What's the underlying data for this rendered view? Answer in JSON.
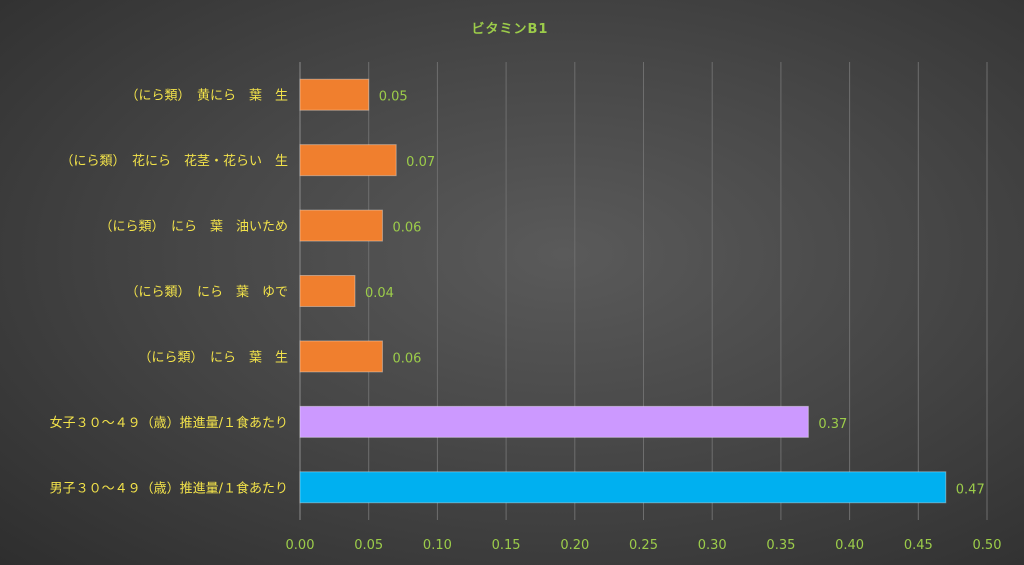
{
  "chart_data": {
    "type": "bar",
    "orientation": "horizontal",
    "title": "ビタミンB1",
    "categories": [
      "（にら類）　黄にら　葉　生",
      "（にら類）　花にら　花茎・花らい　生",
      "（にら類）　にら　葉　油いため",
      "（にら類）　にら　葉　ゆで",
      "（にら類）　にら　葉　生",
      "女子３０～４９（歳）推進量/１食あたり",
      "男子３０～４９（歳）推進量/１食あたり"
    ],
    "values": [
      0.05,
      0.07,
      0.06,
      0.04,
      0.06,
      0.37,
      0.47
    ],
    "value_labels": [
      "0.05",
      "0.07",
      "0.06",
      "0.04",
      "0.06",
      "0.37",
      "0.47"
    ],
    "bar_colors": [
      "#f07f2e",
      "#f07f2e",
      "#f07f2e",
      "#f07f2e",
      "#f07f2e",
      "#cc99ff",
      "#00b0f0"
    ],
    "xlim": [
      0,
      0.5
    ],
    "x_ticks": [
      "0.00",
      "0.05",
      "0.10",
      "0.15",
      "0.20",
      "0.25",
      "0.30",
      "0.35",
      "0.40",
      "0.45",
      "0.50"
    ],
    "grid": true,
    "legend": "none"
  }
}
